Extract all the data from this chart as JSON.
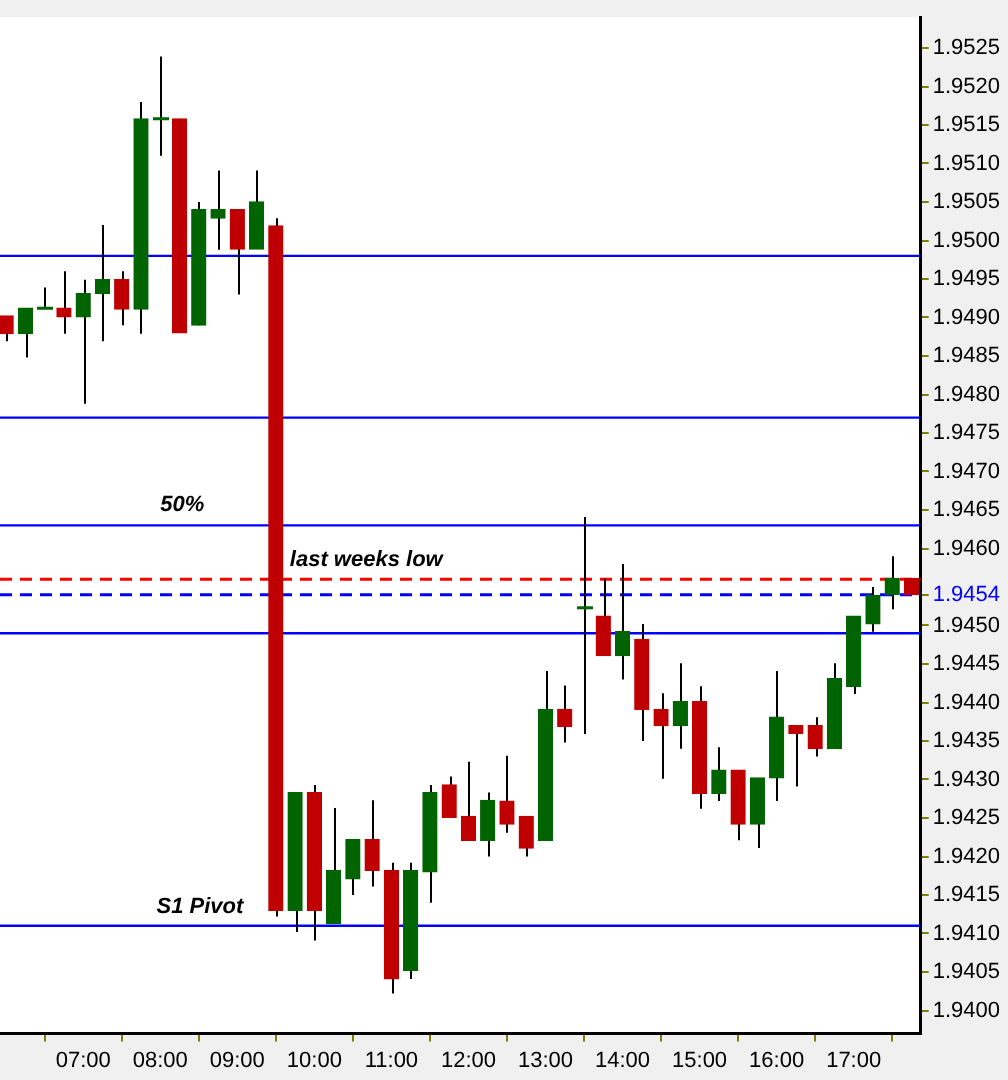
{
  "chart_data": {
    "type": "candlestick",
    "x": [
      6,
      6.25,
      6.5,
      6.75,
      7,
      7.25,
      7.5,
      7.75,
      8,
      8.25,
      8.5,
      8.75,
      9,
      9.25,
      9.5,
      9.75,
      10,
      10.25,
      10.5,
      10.75,
      11,
      11.25,
      11.5,
      11.75,
      12,
      12.25,
      12.5,
      12.75,
      13,
      13.25,
      13.5,
      13.75,
      14,
      14.25,
      14.5,
      14.75,
      15,
      15.25,
      15.5,
      15.75,
      16,
      16.25,
      16.5,
      16.75,
      17,
      17.25,
      17.5,
      17.75
    ],
    "ohlc": [
      [
        1.94902,
        1.94902,
        1.94869,
        1.94879
      ],
      [
        1.94879,
        1.94912,
        1.94848,
        1.94912
      ],
      [
        1.94912,
        1.94939,
        1.94912,
        1.94912
      ],
      [
        1.94912,
        1.9496,
        1.94879,
        1.94901
      ],
      [
        1.94901,
        1.94949,
        1.94788,
        1.94931
      ],
      [
        1.94931,
        1.9502,
        1.94869,
        1.94949
      ],
      [
        1.94949,
        1.9496,
        1.9489,
        1.94911
      ],
      [
        1.94911,
        1.9518,
        1.94879,
        1.95158
      ],
      [
        1.95158,
        1.95239,
        1.9511,
        1.95158
      ],
      [
        1.95158,
        1.95158,
        1.9488,
        1.9488
      ],
      [
        1.9489,
        1.9505,
        1.9489,
        1.9504
      ],
      [
        1.95029,
        1.95091,
        1.94988,
        1.9504
      ],
      [
        1.9504,
        1.9504,
        1.9493,
        1.94989
      ],
      [
        1.94989,
        1.95091,
        1.94989,
        1.9505
      ],
      [
        1.95019,
        1.95029,
        1.94122,
        1.9413
      ],
      [
        1.9413,
        1.94283,
        1.94102,
        1.94283
      ],
      [
        1.94283,
        1.94293,
        1.94091,
        1.9413
      ],
      [
        1.94113,
        1.94263,
        1.94113,
        1.94182
      ],
      [
        1.94171,
        1.94222,
        1.9415,
        1.94222
      ],
      [
        1.94222,
        1.94273,
        1.94161,
        1.94182
      ],
      [
        1.94182,
        1.94192,
        1.94022,
        1.94041
      ],
      [
        1.94052,
        1.94192,
        1.94041,
        1.94182
      ],
      [
        1.9418,
        1.94293,
        1.9414,
        1.94283
      ],
      [
        1.94293,
        1.94304,
        1.94251,
        1.94251
      ],
      [
        1.94252,
        1.94323,
        1.94221,
        1.94221
      ],
      [
        1.94221,
        1.94283,
        1.942,
        1.94273
      ],
      [
        1.94272,
        1.94331,
        1.94231,
        1.94242
      ],
      [
        1.94252,
        1.94252,
        1.942,
        1.94211
      ],
      [
        1.94221,
        1.94441,
        1.94221,
        1.94391
      ],
      [
        1.94391,
        1.94422,
        1.94348,
        1.94369
      ],
      [
        1.94523,
        1.94641,
        1.94359,
        1.94523
      ],
      [
        1.94512,
        1.94561,
        1.94461,
        1.94461
      ],
      [
        1.94461,
        1.9458,
        1.9443,
        1.94492
      ],
      [
        1.94482,
        1.94502,
        1.9435,
        1.94391
      ],
      [
        1.94391,
        1.94412,
        1.94301,
        1.9437
      ],
      [
        1.9437,
        1.94451,
        1.9434,
        1.94401
      ],
      [
        1.94401,
        1.94421,
        1.94262,
        1.94282
      ],
      [
        1.94282,
        1.94342,
        1.94272,
        1.94312
      ],
      [
        1.94312,
        1.94312,
        1.94221,
        1.94242
      ],
      [
        1.94242,
        1.94302,
        1.94211,
        1.94302
      ],
      [
        1.94302,
        1.94441,
        1.94272,
        1.94381
      ],
      [
        1.9437,
        1.9437,
        1.94291,
        1.9436
      ],
      [
        1.9437,
        1.94381,
        1.9433,
        1.9434
      ],
      [
        1.9434,
        1.94451,
        1.9434,
        1.94431
      ],
      [
        1.94421,
        1.94512,
        1.94411,
        1.94512
      ],
      [
        1.94502,
        1.9455,
        1.94492,
        1.94539
      ],
      [
        1.9454,
        1.9459,
        1.94521,
        1.94561
      ],
      [
        1.94561,
        1.94561,
        1.9454,
        1.9454
      ]
    ],
    "colors": [
      "#c00000",
      "#006400",
      "#006400",
      "#c00000",
      "#006400",
      "#006400",
      "#c00000",
      "#006400",
      "#006400",
      "#c00000",
      "#006400",
      "#006400",
      "#c00000",
      "#006400",
      "#c00000",
      "#006400",
      "#c00000",
      "#006400",
      "#006400",
      "#c00000",
      "#c00000",
      "#006400",
      "#006400",
      "#c00000",
      "#c00000",
      "#006400",
      "#c00000",
      "#c00000",
      "#006400",
      "#c00000",
      "#006400",
      "#c00000",
      "#006400",
      "#c00000",
      "#c00000",
      "#006400",
      "#c00000",
      "#006400",
      "#c00000",
      "#006400",
      "#006400",
      "#c00000",
      "#c00000",
      "#006400",
      "#006400",
      "#006400",
      "#006400",
      "#c00000"
    ],
    "xlim": [
      5.92,
      17.87
    ],
    "xticks": [
      {
        "value": 7,
        "label": "07:00"
      },
      {
        "value": 8,
        "label": "08:00"
      },
      {
        "value": 9,
        "label": "09:00"
      },
      {
        "value": 10,
        "label": "10:00"
      },
      {
        "value": 11,
        "label": "11:00"
      },
      {
        "value": 12,
        "label": "12:00"
      },
      {
        "value": 13,
        "label": "13:00"
      },
      {
        "value": 14,
        "label": "14:00"
      },
      {
        "value": 15,
        "label": "15:00"
      },
      {
        "value": 16,
        "label": "16:00"
      },
      {
        "value": 17,
        "label": "17:00"
      }
    ],
    "ylim": [
      1.9397,
      1.9529
    ],
    "yticks": [
      {
        "value": 1.94,
        "label": "1.9400"
      },
      {
        "value": 1.9405,
        "label": "1.9405"
      },
      {
        "value": 1.941,
        "label": "1.9410"
      },
      {
        "value": 1.9415,
        "label": "1.9415"
      },
      {
        "value": 1.942,
        "label": "1.9420"
      },
      {
        "value": 1.9425,
        "label": "1.9425"
      },
      {
        "value": 1.943,
        "label": "1.9430"
      },
      {
        "value": 1.9435,
        "label": "1.9435"
      },
      {
        "value": 1.944,
        "label": "1.9440"
      },
      {
        "value": 1.9445,
        "label": "1.9445"
      },
      {
        "value": 1.945,
        "label": "1.9450"
      },
      {
        "value": 1.9454,
        "label": "1.9454"
      },
      {
        "value": 1.946,
        "label": "1.9460"
      },
      {
        "value": 1.9465,
        "label": "1.9465"
      },
      {
        "value": 1.947,
        "label": "1.9470"
      },
      {
        "value": 1.9475,
        "label": "1.9475"
      },
      {
        "value": 1.948,
        "label": "1.9480"
      },
      {
        "value": 1.9485,
        "label": "1.9485"
      },
      {
        "value": 1.949,
        "label": "1.9490"
      },
      {
        "value": 1.9495,
        "label": "1.9495"
      },
      {
        "value": 1.95,
        "label": "1.9500"
      },
      {
        "value": 1.9505,
        "label": "1.9505"
      },
      {
        "value": 1.951,
        "label": "1.9510"
      },
      {
        "value": 1.9515,
        "label": "1.9515"
      },
      {
        "value": 1.952,
        "label": "1.9520"
      },
      {
        "value": 1.9525,
        "label": "1.9525"
      }
    ],
    "ref_lines": [
      {
        "axis": "y",
        "value": 1.9498,
        "color": "#0000ff"
      },
      {
        "axis": "y",
        "value": 1.9477,
        "color": "#0000ff"
      },
      {
        "axis": "y",
        "value": 1.9463,
        "color": "#0000ff"
      },
      {
        "axis": "y",
        "value": 1.9456,
        "label": "last weeks low",
        "color": "#ff0000",
        "line_style": "dashed"
      },
      {
        "axis": "y",
        "value": 1.9454,
        "color": "#0000ff",
        "line_style": "dashed"
      },
      {
        "axis": "y",
        "value": 1.9449,
        "color": "#0000ff"
      },
      {
        "axis": "y",
        "value": 1.9411,
        "label": "S1 Pivot",
        "color": "#0000ff"
      }
    ],
    "annotations": [
      {
        "text": "50%",
        "x": 8,
        "y": 1.9463
      }
    ],
    "grid": false
  }
}
